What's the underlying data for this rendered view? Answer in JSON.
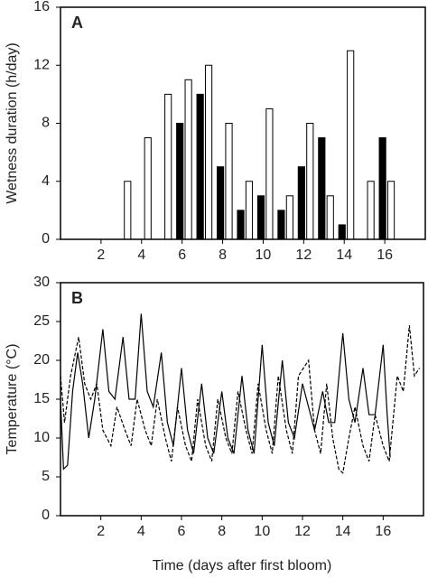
{
  "chart_data": [
    {
      "type": "bar",
      "label": "A",
      "ylabel": "Wetness duration (h/day)",
      "x": [
        3,
        4,
        5,
        6,
        7,
        8,
        9,
        10,
        11,
        12,
        13,
        14,
        15,
        16
      ],
      "series": [
        {
          "color": "#ffffff",
          "values": [
            4,
            7,
            10,
            11,
            12,
            8,
            4,
            9,
            3,
            8,
            3,
            13,
            4,
            4
          ]
        },
        {
          "color": "#000000",
          "values": [
            null,
            null,
            null,
            8,
            10,
            5,
            2,
            3,
            2,
            5,
            7,
            1,
            null,
            7
          ]
        }
      ],
      "xlim": [
        0,
        18
      ],
      "xticks": [
        2,
        4,
        6,
        8,
        10,
        12,
        14,
        16
      ],
      "ylim": [
        0,
        16
      ],
      "yticks": [
        0,
        4,
        8,
        12,
        16
      ]
    },
    {
      "type": "line",
      "label": "B",
      "ylabel": "Temperature (°C)",
      "xlabel": "Time (days after first bloom)",
      "series": [
        {
          "color": "#000000",
          "dash": false,
          "x": [
            0,
            0.15,
            0.35,
            0.6,
            0.85,
            1.1,
            1.4,
            1.7,
            2.1,
            2.4,
            2.7,
            3.1,
            3.4,
            3.7,
            4.0,
            4.3,
            4.6,
            5.0,
            5.3,
            5.6,
            6.0,
            6.3,
            6.6,
            7.0,
            7.3,
            7.6,
            8.0,
            8.3,
            8.6,
            9.0,
            9.3,
            9.6,
            10.0,
            10.3,
            10.6,
            11.0,
            11.3,
            11.6,
            12.0,
            12.3,
            12.6,
            13.0,
            13.3,
            13.6,
            14.0,
            14.3,
            14.6,
            15.0,
            15.3,
            15.6,
            16.0,
            16.2,
            16.35
          ],
          "values": [
            15,
            6,
            6.5,
            16,
            21,
            17,
            10,
            15,
            24,
            16,
            15,
            23,
            15,
            15,
            26,
            16,
            14,
            21,
            12,
            9,
            19,
            11,
            8,
            17,
            10,
            8,
            16,
            10,
            8,
            18,
            11,
            8,
            22,
            12,
            9,
            20,
            12,
            10,
            17,
            14,
            11,
            16,
            12,
            12,
            23.5,
            15,
            12,
            19,
            13,
            13,
            22,
            13,
            7.5
          ]
        },
        {
          "color": "#000000",
          "dash": true,
          "x": [
            0,
            0.2,
            0.5,
            0.9,
            1.2,
            1.5,
            1.8,
            2.1,
            2.5,
            2.8,
            3.2,
            3.5,
            3.8,
            4.2,
            4.5,
            4.8,
            5.2,
            5.5,
            5.8,
            6.2,
            6.5,
            6.8,
            7.2,
            7.5,
            7.8,
            8.2,
            8.5,
            8.8,
            9.2,
            9.5,
            9.8,
            10.2,
            10.5,
            10.8,
            11.2,
            11.5,
            11.8,
            12.3,
            12.6,
            12.9,
            13.2,
            13.5,
            13.8,
            14.0,
            14.3,
            14.6,
            15.0,
            15.3,
            15.6,
            16.0,
            16.3,
            16.7,
            17.0,
            17.3,
            17.55,
            17.8
          ],
          "values": [
            18,
            12,
            18,
            23,
            17,
            15,
            17,
            11,
            9,
            14,
            11,
            9,
            15,
            11,
            9,
            15,
            10,
            7,
            14,
            9,
            7,
            15,
            9,
            7,
            15,
            10,
            8,
            16,
            11,
            8,
            17,
            11,
            8,
            18,
            11,
            8,
            18,
            20,
            11,
            8,
            17,
            10,
            6,
            5.5,
            10,
            14,
            9,
            7,
            13,
            9,
            7,
            18,
            16,
            24.5,
            18,
            19
          ]
        }
      ],
      "xlim": [
        0,
        18
      ],
      "xticks": [
        2,
        4,
        6,
        8,
        10,
        12,
        14,
        16
      ],
      "ylim": [
        0,
        30
      ],
      "yticks": [
        0,
        5,
        10,
        15,
        20,
        25,
        30
      ]
    }
  ]
}
